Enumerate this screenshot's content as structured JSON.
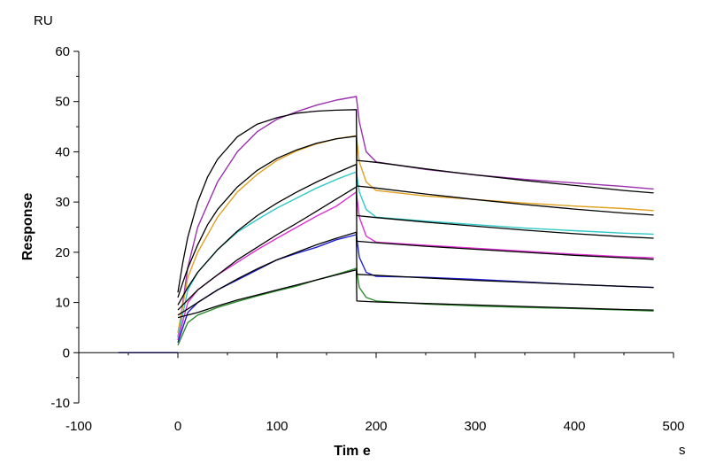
{
  "chart_data": {
    "type": "line",
    "xlabel": "Tim e",
    "ylabel": "Response",
    "x_unit": "s",
    "y_unit": "RU",
    "xlim": [
      -100,
      500
    ],
    "ylim": [
      -10,
      60
    ],
    "xticks": [
      -100,
      0,
      100,
      200,
      300,
      400,
      500
    ],
    "yticks": [
      -10,
      0,
      10,
      20,
      30,
      40,
      50,
      60
    ],
    "grid": false,
    "legend": "none",
    "baseline": {
      "x": [
        -60,
        0
      ],
      "y": [
        0,
        0
      ]
    },
    "series": [
      {
        "color": "#9b2fae",
        "x": [
          0,
          10,
          20,
          40,
          60,
          80,
          100,
          120,
          140,
          160,
          180,
          183,
          190,
          200,
          250,
          300,
          350,
          400,
          450,
          480
        ],
        "y": [
          3,
          17,
          25,
          34,
          40,
          44,
          46.5,
          48,
          49.3,
          50.3,
          51,
          46,
          40,
          38,
          36.5,
          35.4,
          34.5,
          33.8,
          33.1,
          32.6
        ]
      },
      {
        "color": "#e0a020",
        "x": [
          0,
          10,
          20,
          40,
          60,
          80,
          100,
          120,
          140,
          160,
          180,
          183,
          190,
          200,
          250,
          300,
          350,
          400,
          450,
          480
        ],
        "y": [
          4,
          15,
          20,
          27,
          32,
          35.5,
          38.3,
          40.2,
          41.6,
          42.6,
          43.2,
          38,
          34,
          32.3,
          31.2,
          30.5,
          29.8,
          29.2,
          28.7,
          28.3
        ]
      },
      {
        "color": "#30c8c8",
        "x": [
          0,
          10,
          20,
          40,
          60,
          80,
          100,
          120,
          140,
          160,
          180,
          183,
          190,
          200,
          250,
          300,
          350,
          400,
          450,
          480
        ],
        "y": [
          3,
          12.5,
          16,
          20.5,
          24,
          26.5,
          28.8,
          30.8,
          32.8,
          34.5,
          36,
          32,
          28.5,
          27,
          26.2,
          25.5,
          24.8,
          24.3,
          23.8,
          23.6
        ]
      },
      {
        "color": "#e030d0",
        "x": [
          0,
          10,
          20,
          40,
          60,
          80,
          100,
          120,
          140,
          160,
          180,
          183,
          190,
          200,
          250,
          300,
          350,
          400,
          450,
          480
        ],
        "y": [
          2.5,
          10,
          12.5,
          15.5,
          18,
          20.5,
          22.8,
          25,
          27.2,
          29.2,
          32,
          27,
          23.2,
          22,
          21.4,
          20.8,
          20.2,
          19.6,
          19.1,
          18.9
        ]
      },
      {
        "color": "#2020d8",
        "x": [
          0,
          10,
          20,
          40,
          60,
          80,
          100,
          120,
          140,
          160,
          180,
          183,
          190,
          200,
          250,
          300,
          350,
          400,
          450,
          480
        ],
        "y": [
          2,
          8,
          10,
          12.5,
          14.5,
          16.5,
          18.5,
          19.8,
          21,
          22.5,
          23.5,
          19,
          16,
          15.2,
          15,
          14.6,
          14.1,
          13.6,
          13.2,
          13
        ]
      },
      {
        "color": "#2e8b2e",
        "x": [
          0,
          10,
          20,
          40,
          60,
          80,
          100,
          120,
          140,
          160,
          180,
          183,
          190,
          200,
          250,
          300,
          350,
          400,
          450,
          480
        ],
        "y": [
          1.5,
          6,
          7.5,
          9,
          10.2,
          11.3,
          12.3,
          13.3,
          14.5,
          15.6,
          16.8,
          13,
          11,
          10.3,
          9.7,
          9.3,
          9,
          8.8,
          8.5,
          8.3
        ]
      }
    ],
    "fits": [
      {
        "x": [
          0,
          5,
          10,
          20,
          30,
          40,
          60,
          80,
          100,
          120,
          140,
          160,
          180,
          180.5,
          200,
          250,
          300,
          350,
          400,
          450,
          480
        ],
        "y": [
          12,
          18,
          23,
          30,
          35,
          38.5,
          43,
          45.5,
          46.8,
          47.7,
          48.1,
          48.3,
          48.4,
          38.3,
          37.9,
          36.6,
          35.4,
          34.3,
          33.3,
          32.3,
          31.8
        ]
      },
      {
        "x": [
          0,
          5,
          10,
          20,
          30,
          40,
          60,
          80,
          100,
          120,
          140,
          160,
          180,
          180.5,
          200,
          250,
          300,
          350,
          400,
          450,
          480
        ],
        "y": [
          11,
          14,
          16.8,
          21.5,
          25.5,
          28.5,
          33,
          36.3,
          38.7,
          40.4,
          41.7,
          42.6,
          43.1,
          33.2,
          32.8,
          31.6,
          30.5,
          29.5,
          28.6,
          27.8,
          27.4
        ]
      },
      {
        "x": [
          0,
          10,
          20,
          40,
          60,
          80,
          100,
          120,
          140,
          160,
          180,
          180.5,
          200,
          250,
          300,
          350,
          400,
          450,
          480
        ],
        "y": [
          9.5,
          13,
          16,
          20.5,
          24.2,
          27.3,
          29.8,
          32,
          34,
          35.8,
          37.5,
          27.3,
          26.9,
          26,
          25.2,
          24.4,
          23.7,
          23.1,
          22.8
        ]
      },
      {
        "x": [
          0,
          10,
          20,
          40,
          60,
          80,
          100,
          120,
          140,
          160,
          180,
          180.5,
          200,
          250,
          300,
          350,
          400,
          450,
          480
        ],
        "y": [
          8.5,
          10.5,
          12.5,
          15.5,
          18.5,
          21,
          23.5,
          25.8,
          28.2,
          30.6,
          33,
          22.2,
          21.9,
          21.2,
          20.6,
          20,
          19.4,
          18.9,
          18.6
        ]
      },
      {
        "x": [
          0,
          10,
          20,
          40,
          60,
          80,
          100,
          120,
          140,
          160,
          180,
          180.5,
          200,
          250,
          300,
          350,
          400,
          450,
          480
        ],
        "y": [
          7.5,
          8.7,
          10,
          12.5,
          14.7,
          16.7,
          18.5,
          20,
          21.5,
          22.8,
          24,
          15.6,
          15.4,
          14.9,
          14.4,
          14,
          13.6,
          13.2,
          13
        ]
      },
      {
        "x": [
          0,
          10,
          20,
          40,
          60,
          80,
          100,
          120,
          140,
          160,
          180,
          180.5,
          200,
          250,
          300,
          350,
          400,
          450,
          480
        ],
        "y": [
          7,
          7.5,
          8,
          9.3,
          10.5,
          11.5,
          12.5,
          13.5,
          14.5,
          15.5,
          16.5,
          10.3,
          10.1,
          9.8,
          9.5,
          9.2,
          8.9,
          8.6,
          8.5
        ]
      }
    ]
  }
}
